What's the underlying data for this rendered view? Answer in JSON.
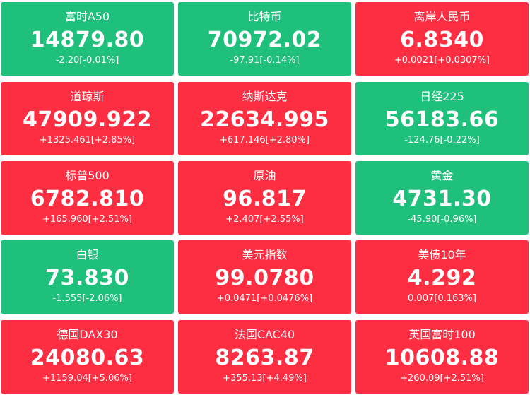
{
  "tiles": [
    {
      "name": "富时A50",
      "price": "14879.80",
      "change": "-2.20[-0.01%]",
      "color": "#1fc07c"
    },
    {
      "name": "比特币",
      "price": "70972.02",
      "change": "-97.91[-0.14%]",
      "color": "#1fc07c"
    },
    {
      "name": "离岸人民币",
      "price": "6.8340",
      "change": "+0.0021[+0.0307%]",
      "color": "#fd2d42"
    },
    {
      "name": "道琼斯",
      "price": "47909.922",
      "change": "+1325.461[+2.85%]",
      "color": "#fd2d42"
    },
    {
      "name": "纳斯达克",
      "price": "22634.995",
      "change": "+617.146[+2.80%]",
      "color": "#fd2d42"
    },
    {
      "name": "日经225",
      "price": "56183.66",
      "change": "-124.76[-0.22%]",
      "color": "#1fc07c"
    },
    {
      "name": "标普500",
      "price": "6782.810",
      "change": "+165.960[+2.51%]",
      "color": "#fd2d42"
    },
    {
      "name": "原油",
      "price": "96.817",
      "change": "+2.407[+2.55%]",
      "color": "#fd2d42"
    },
    {
      "name": "黄金",
      "price": "4731.30",
      "change": "-45.90[-0.96%]",
      "color": "#1fc07c"
    },
    {
      "name": "白银",
      "price": "73.830",
      "change": "-1.555[-2.06%]",
      "color": "#1fc07c"
    },
    {
      "name": "美元指数",
      "price": "99.0780",
      "change": "+0.0471[+0.0476%]",
      "color": "#fd2d42"
    },
    {
      "name": "美债10年",
      "price": "4.292",
      "change": "0.007[0.163%]",
      "color": "#fd2d42"
    },
    {
      "name": "德国DAX30",
      "price": "24080.63",
      "change": "+1159.04[+5.06%]",
      "color": "#fd2d42"
    },
    {
      "name": "法国CAC40",
      "price": "8263.87",
      "change": "+355.13[+4.49%]",
      "color": "#fd2d42"
    },
    {
      "name": "英国富时100",
      "price": "10608.88",
      "change": "+260.09[+2.51%]",
      "color": "#fd2d42"
    }
  ]
}
